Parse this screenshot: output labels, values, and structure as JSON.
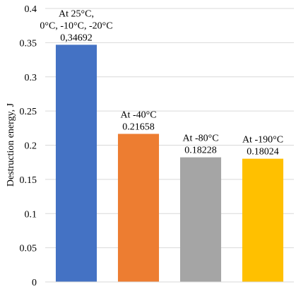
{
  "chart_data": {
    "type": "bar",
    "title": "",
    "xlabel": "",
    "ylabel": "Destruction energy, J",
    "ylim": [
      0,
      0.4
    ],
    "yticks": [
      "0",
      "0.05",
      "0.1",
      "0.15",
      "0.2",
      "0.25",
      "0.3",
      "0.35",
      "0.4"
    ],
    "grid": true,
    "legend": "none",
    "categories": [
      "At 25°C, 0°C, -10°C, -20°C",
      "At -40°C",
      "At -80°C",
      "At -190°C"
    ],
    "values": [
      0.34692,
      0.21658,
      0.18228,
      0.18024
    ],
    "colors": [
      "#4472C4",
      "#ED7D31",
      "#A5A5A5",
      "#FFC000"
    ],
    "data_labels": [
      [
        "At 25°C,",
        "0°C, -10°C, -20°C",
        "0,34692"
      ],
      [
        "At -40°C",
        "0.21658"
      ],
      [
        "At -80°C",
        "0.18228"
      ],
      [
        "At -190°C",
        "0.18024"
      ]
    ]
  }
}
